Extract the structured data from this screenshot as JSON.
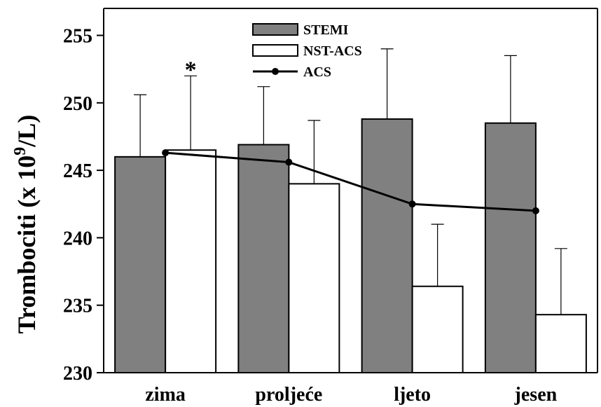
{
  "chart_data": {
    "type": "bar",
    "title": "",
    "xlabel": "",
    "ylabel": "Trombociti (x 10",
    "ylabel_sup": "9",
    "ylabel_tail": "/L)",
    "ylim": [
      230,
      257
    ],
    "yticks": [
      230,
      235,
      240,
      245,
      250,
      255
    ],
    "grid": false,
    "legend_position": "top-center",
    "categories": [
      "zima",
      "proljeće",
      "ljeto",
      "jesen"
    ],
    "series": [
      {
        "name": "STEMI",
        "kind": "bar",
        "color": "#808080",
        "values": [
          246.0,
          246.9,
          248.8,
          248.5
        ],
        "error_upper": [
          250.6,
          251.2,
          254.0,
          253.5
        ]
      },
      {
        "name": "NST-ACS",
        "kind": "bar",
        "color": "#ffffff",
        "values": [
          246.5,
          244.0,
          236.4,
          234.3
        ],
        "error_upper": [
          252.0,
          248.7,
          241.0,
          239.2
        ]
      },
      {
        "name": "ACS",
        "kind": "line",
        "color": "#000000",
        "values": [
          246.3,
          245.6,
          242.5,
          242.0
        ]
      }
    ],
    "annotations": [
      {
        "text": "*",
        "category": "zima",
        "series": "NST-ACS"
      }
    ]
  }
}
